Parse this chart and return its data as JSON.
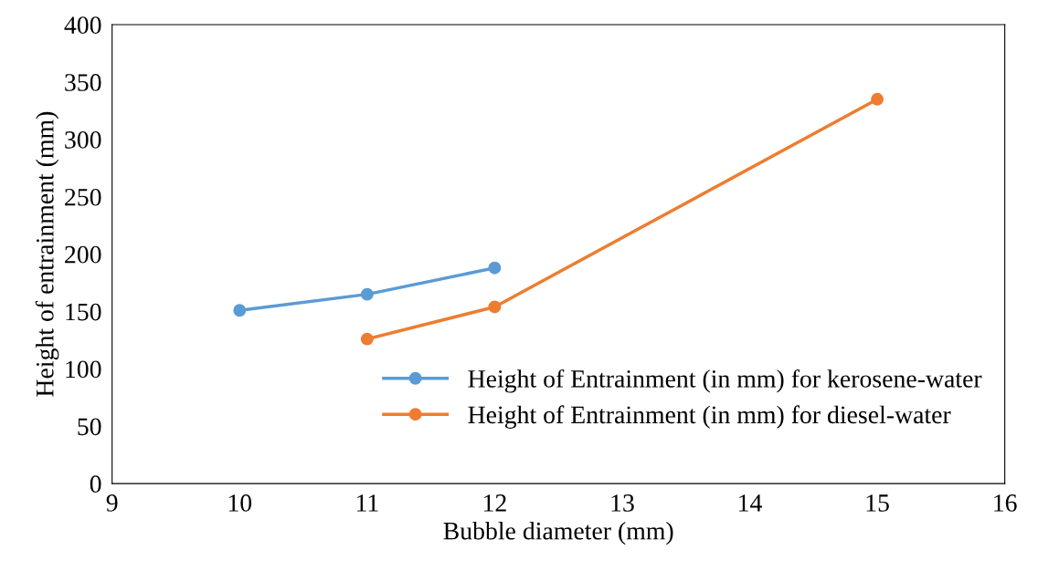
{
  "chart_data": {
    "type": "line",
    "xlabel": "Bubble diameter (mm)",
    "ylabel": "Height of entrainment (mm)",
    "xlim": [
      9,
      16
    ],
    "xticks": [
      9,
      10,
      11,
      12,
      13,
      14,
      15,
      16
    ],
    "ylim": [
      0,
      400
    ],
    "yticks": [
      0,
      50,
      100,
      150,
      200,
      250,
      300,
      350,
      400
    ],
    "series": [
      {
        "name": "Height of Entrainment (in mm) for kerosene-water",
        "color": "#5b9bd5",
        "x": [
          10,
          11,
          12
        ],
        "values": [
          151,
          165,
          188
        ]
      },
      {
        "name": "Height of Entrainment (in mm) for diesel-water",
        "color": "#ed7d31",
        "x": [
          11,
          12,
          15
        ],
        "values": [
          126,
          154,
          335
        ]
      }
    ],
    "marker": "circle",
    "line_style": "solid",
    "grid": false,
    "legend": "bottom right"
  }
}
